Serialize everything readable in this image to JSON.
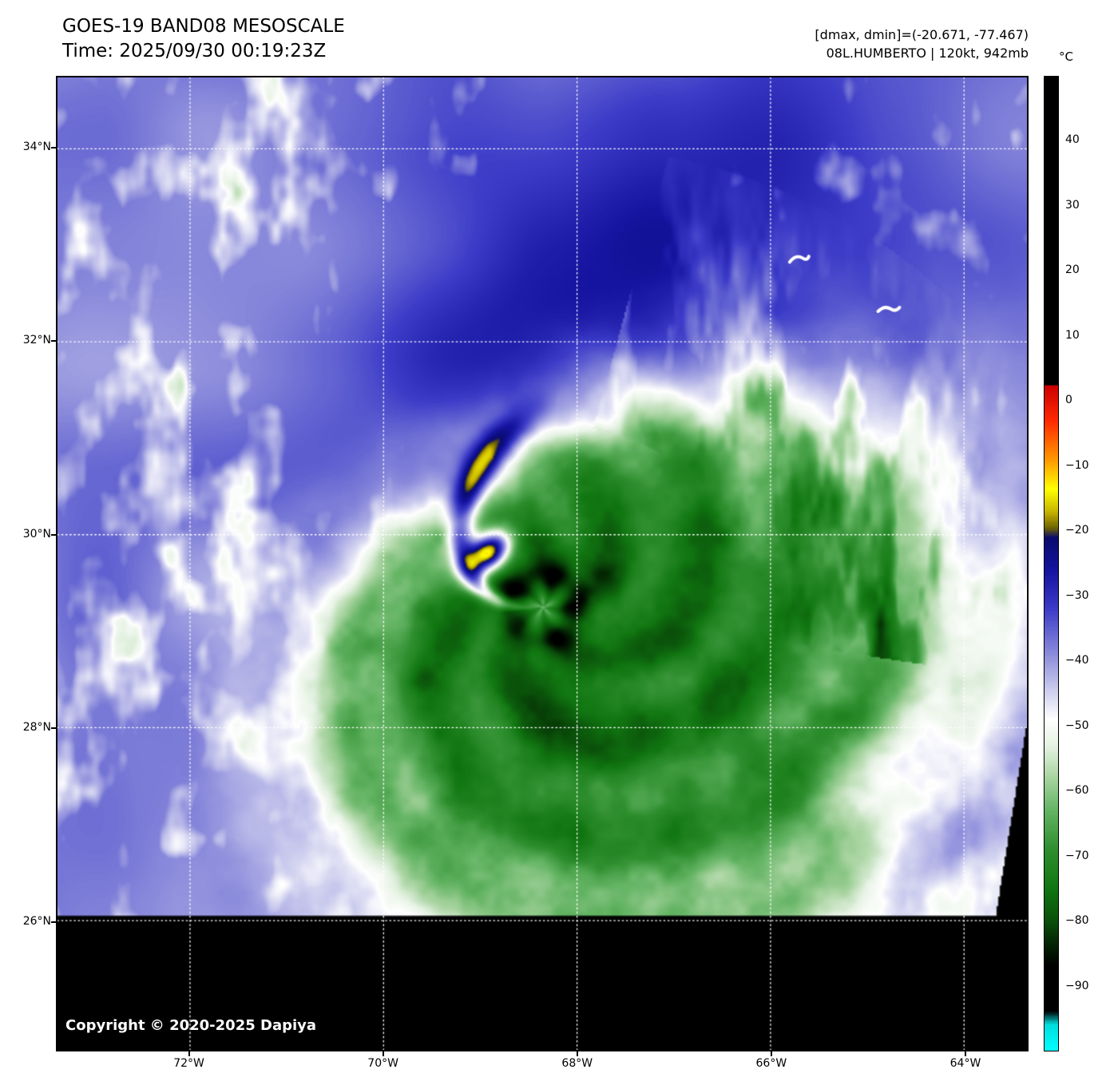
{
  "header": {
    "title": "GOES-19 BAND08 MESOSCALE",
    "time": "Time: 2025/09/30 00:19:23Z",
    "dmax_dmin": "[dmax, dmin]=(-20.671, -77.467)",
    "storm_info": "08L.HUMBERTO | 120kt, 942mb"
  },
  "copyright": "Copyright © 2020-2025 Dapiya",
  "chart_data": {
    "type": "heatmap",
    "title": "GOES-19 BAND08 MESOSCALE",
    "subtitle": "Time: 2025/09/30 00:19:23Z",
    "satellite": "GOES-19",
    "band": "BAND08",
    "sector": "MESOSCALE",
    "storm": {
      "id": "08L",
      "name": "HUMBERTO",
      "intensity_kt": 120,
      "pressure_mb": 942
    },
    "data_range": {
      "dmax_c": -20.671,
      "dmin_c": -77.467
    },
    "x_axis": {
      "ticks": [
        {
          "label": "72°W",
          "value": -72
        },
        {
          "label": "70°W",
          "value": -70
        },
        {
          "label": "68°W",
          "value": -68
        },
        {
          "label": "66°W",
          "value": -66
        },
        {
          "label": "64°W",
          "value": -64
        }
      ],
      "range": [
        -73.37,
        -63.35
      ]
    },
    "y_axis": {
      "ticks": [
        {
          "label": "34°N",
          "value": 34
        },
        {
          "label": "32°N",
          "value": 32
        },
        {
          "label": "30°N",
          "value": 30
        },
        {
          "label": "28°N",
          "value": 28
        },
        {
          "label": "26°N",
          "value": 26
        }
      ],
      "range": [
        24.66,
        34.74
      ]
    },
    "grid": {
      "show": true,
      "color": "#ffffff",
      "style": "dotted"
    },
    "colorbar": {
      "label": "°C",
      "range": [
        -100,
        50
      ],
      "ticks": [
        {
          "label": "40",
          "value": 40
        },
        {
          "label": "30",
          "value": 30
        },
        {
          "label": "20",
          "value": 20
        },
        {
          "label": "10",
          "value": 10
        },
        {
          "label": "0",
          "value": 0
        },
        {
          "label": "−10",
          "value": -10
        },
        {
          "label": "−20",
          "value": -20
        },
        {
          "label": "−30",
          "value": -30
        },
        {
          "label": "−40",
          "value": -40
        },
        {
          "label": "−50",
          "value": -50
        },
        {
          "label": "−60",
          "value": -60
        },
        {
          "label": "−70",
          "value": -70
        },
        {
          "label": "−80",
          "value": -80
        },
        {
          "label": "−90",
          "value": -90
        }
      ],
      "stops": [
        [
          50,
          "#000000"
        ],
        [
          2.5,
          "#000000"
        ],
        [
          2.49,
          "#cc0000"
        ],
        [
          -3,
          "#ff2a00"
        ],
        [
          -9,
          "#ff9900"
        ],
        [
          -13.5,
          "#ffff00"
        ],
        [
          -17,
          "#c8b400"
        ],
        [
          -19.5,
          "#6e6400"
        ],
        [
          -21,
          "#0a0a6e"
        ],
        [
          -26,
          "#1414a0"
        ],
        [
          -32,
          "#3c3cc8"
        ],
        [
          -39,
          "#8c8cdc"
        ],
        [
          -45,
          "#d2d2f0"
        ],
        [
          -49,
          "#ffffff"
        ],
        [
          -53,
          "#e6f2e4"
        ],
        [
          -58,
          "#a8d4a0"
        ],
        [
          -63,
          "#64b464"
        ],
        [
          -69,
          "#2f8f2f"
        ],
        [
          -75,
          "#117711"
        ],
        [
          -80,
          "#0a500a"
        ],
        [
          -84,
          "#032003"
        ],
        [
          -87,
          "#000000"
        ],
        [
          -94,
          "#000000"
        ],
        [
          -96,
          "#00dcdc"
        ],
        [
          -100,
          "#00ffff"
        ]
      ]
    },
    "features": {
      "background_temp_c": -35,
      "storm_center": {
        "lat": 29.25,
        "lon": -68.35
      },
      "cold_shield": {
        "radius_deg": 2.8,
        "min_temp_c": -76
      },
      "eye": {
        "radius_deg": 0.16
      },
      "dry_slot": {
        "temp_c": -25,
        "hot_streak_temp_c": -12
      },
      "bermuda_clouds": [
        {
          "lat": 32.86,
          "lon": -65.72
        },
        {
          "lat": 32.34,
          "lon": -64.79
        }
      ],
      "masked_black_below_lat": 26.05,
      "masked_black_right_edge": {
        "start_lat": 28.05,
        "lon_per_deg_lat": 0.161
      }
    }
  }
}
